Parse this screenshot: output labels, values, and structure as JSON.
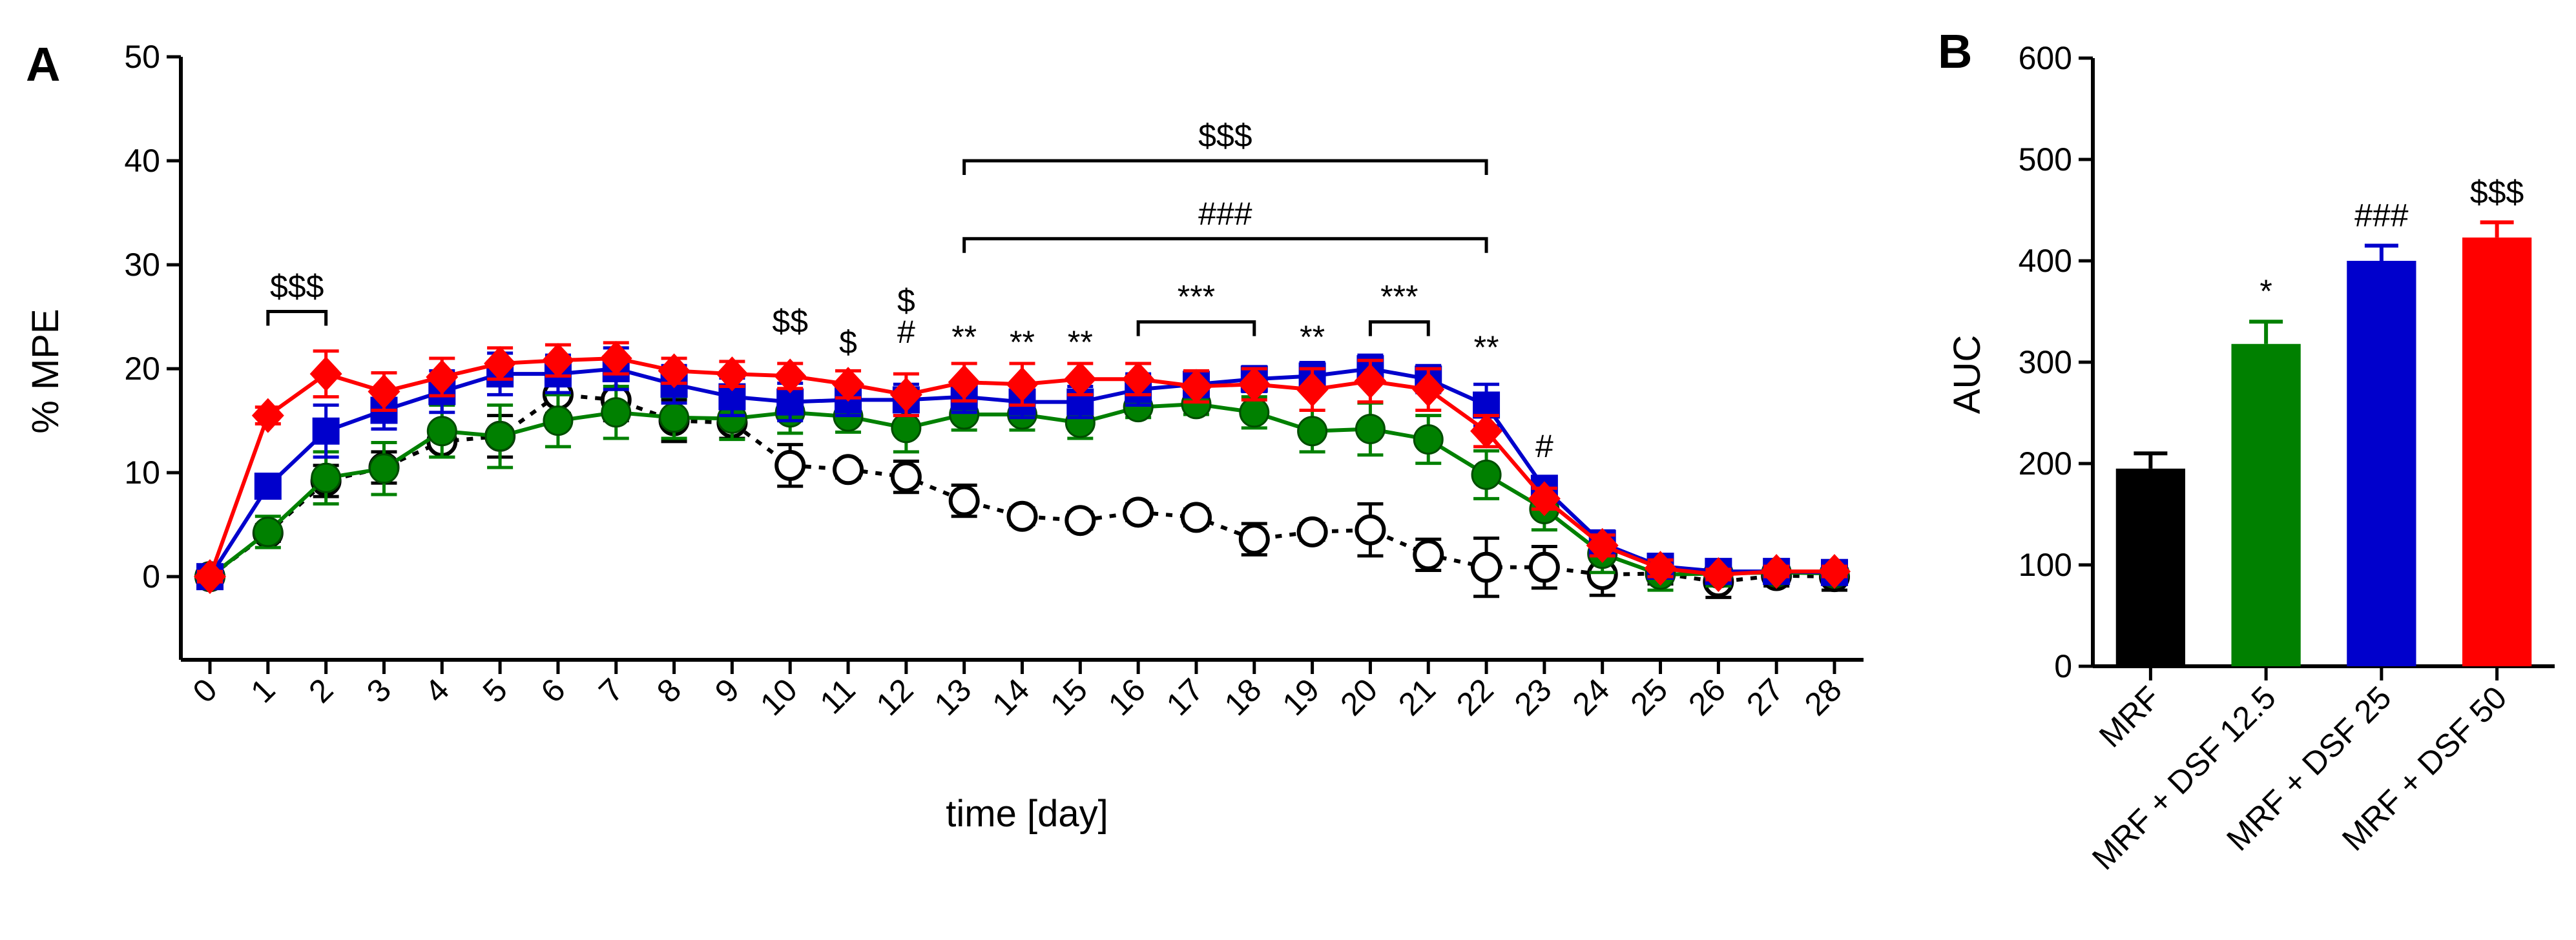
{
  "chart_data": [
    {
      "panel_label": "A",
      "type": "line",
      "xlabel": "time [day]",
      "ylabel": "% MPE",
      "xlim": [
        0,
        28
      ],
      "ylim": [
        -8,
        50
      ],
      "yticks": [
        0,
        10,
        20,
        30,
        40,
        50
      ],
      "x": [
        0,
        1,
        2,
        3,
        4,
        5,
        6,
        7,
        8,
        9,
        10,
        11,
        12,
        13,
        14,
        15,
        16,
        17,
        18,
        19,
        20,
        21,
        22,
        23,
        24,
        25,
        26,
        27,
        28
      ],
      "series": [
        {
          "name": "MRF",
          "color": "#000000",
          "marker": "open-circle",
          "dashed": true,
          "values": [
            0,
            4.2,
            9.2,
            10.5,
            13.0,
            13.5,
            17.5,
            17.0,
            15.0,
            14.8,
            10.7,
            10.3,
            9.6,
            7.3,
            5.8,
            5.4,
            6.2,
            5.7,
            3.6,
            4.3,
            4.5,
            2.1,
            0.9,
            0.9,
            0.2,
            0.3,
            -0.5,
            0.1,
            0.0
          ],
          "errors": [
            0.8,
            0.8,
            1.5,
            1.5,
            1.5,
            2.0,
            1.8,
            2.0,
            2.0,
            1.5,
            2.0,
            0.8,
            1.5,
            1.5,
            0.8,
            0.8,
            0.8,
            0.8,
            1.5,
            0.8,
            2.5,
            1.5,
            2.8,
            2.0,
            2.0,
            1.0,
            1.5,
            1.0,
            1.3
          ]
        },
        {
          "name": "MRF + DSF 12.5",
          "color": "#008000",
          "marker": "circle",
          "dashed": false,
          "values": [
            0,
            4.3,
            9.5,
            10.4,
            14.0,
            13.5,
            15.0,
            15.8,
            15.3,
            15.2,
            15.8,
            15.4,
            14.3,
            15.6,
            15.6,
            14.8,
            16.3,
            16.6,
            15.8,
            14.0,
            14.2,
            13.2,
            9.8,
            6.5,
            2.2,
            0.2,
            0.3,
            0.4,
            0.3
          ],
          "errors": [
            0.8,
            1.5,
            2.5,
            2.5,
            2.5,
            3.0,
            2.5,
            2.5,
            2.0,
            2.0,
            2.0,
            1.5,
            2.3,
            1.5,
            1.5,
            1.5,
            1.0,
            1.0,
            1.5,
            2.0,
            2.5,
            2.3,
            2.3,
            2.0,
            1.8,
            1.5,
            1.2,
            1.0,
            1.0
          ]
        },
        {
          "name": "MRF + DSF 25",
          "color": "#0000CC",
          "marker": "square",
          "dashed": false,
          "values": [
            0,
            8.7,
            14.0,
            16.0,
            17.8,
            19.5,
            19.5,
            20.0,
            18.5,
            17.3,
            16.8,
            17.0,
            17.0,
            17.3,
            16.8,
            16.8,
            18.0,
            18.5,
            19.0,
            19.3,
            20.0,
            19.0,
            16.5,
            8.5,
            3.2,
            1.0,
            0.5,
            0.5,
            0.4
          ],
          "errors": [
            0.6,
            1.0,
            2.5,
            1.8,
            2.0,
            2.0,
            1.8,
            2.0,
            1.8,
            1.8,
            1.8,
            1.5,
            1.5,
            1.5,
            1.5,
            1.5,
            1.5,
            1.2,
            1.2,
            1.3,
            1.3,
            1.3,
            2.0,
            1.0,
            1.2,
            1.0,
            1.0,
            0.8,
            0.8
          ]
        },
        {
          "name": "MRF + DSF 50",
          "color": "#FF0000",
          "marker": "diamond",
          "dashed": false,
          "values": [
            0,
            15.5,
            19.5,
            17.8,
            19.2,
            20.5,
            20.8,
            21.0,
            19.8,
            19.5,
            19.3,
            18.5,
            17.5,
            18.7,
            18.5,
            19.0,
            19.0,
            18.3,
            18.5,
            18.0,
            18.8,
            18.0,
            14.0,
            7.5,
            3.0,
            0.8,
            0.2,
            0.5,
            0.5
          ],
          "errors": [
            0.5,
            0.8,
            2.2,
            1.8,
            1.8,
            1.5,
            1.5,
            1.5,
            1.2,
            1.2,
            1.2,
            1.3,
            2.0,
            1.8,
            2.0,
            1.5,
            1.5,
            1.5,
            1.5,
            2.0,
            2.0,
            2.0,
            1.5,
            1.0,
            1.0,
            0.8,
            0.5,
            0.5,
            0.5
          ]
        }
      ],
      "annotations": [
        {
          "text": "$$",
          "x": 10,
          "y": 23.5
        },
        {
          "text": "$",
          "x": 11,
          "y": 21.5
        },
        {
          "text": "$",
          "x": 12,
          "y": 25.5
        },
        {
          "text": "#",
          "x": 12,
          "y": 22.5
        },
        {
          "text": "**",
          "x": 13,
          "y": 22
        },
        {
          "text": "**",
          "x": 14,
          "y": 21.5
        },
        {
          "text": "**",
          "x": 15,
          "y": 21.5
        },
        {
          "text": "**",
          "x": 19,
          "y": 22
        },
        {
          "text": "**",
          "x": 22,
          "y": 21
        },
        {
          "text": "#",
          "x": 23,
          "y": 11.5
        }
      ],
      "brackets": [
        {
          "text": "$$$",
          "x1": 1,
          "x2": 2,
          "y": 25.5
        },
        {
          "text": "$$$",
          "x1": 13,
          "x2": 22,
          "y": 40.0
        },
        {
          "text": "###",
          "x1": 13,
          "x2": 22,
          "y": 32.5
        },
        {
          "text": "***",
          "x1": 16,
          "x2": 18,
          "y": 24.5
        },
        {
          "text": "***",
          "x1": 20,
          "x2": 21,
          "y": 24.5
        }
      ]
    },
    {
      "panel_label": "B",
      "type": "bar",
      "ylabel": "AUC",
      "ylim": [
        0,
        600
      ],
      "yticks": [
        0,
        100,
        200,
        300,
        400,
        500,
        600
      ],
      "categories": [
        "MRF",
        "MRF + DSF 12.5",
        "MRF + DSF 25",
        "MRF + DSF 50"
      ],
      "values": [
        195,
        318,
        400,
        423
      ],
      "errors": [
        15,
        22,
        15,
        15
      ],
      "colors": [
        "#000000",
        "#008000",
        "#0000CC",
        "#FF0000"
      ],
      "significance": [
        "",
        "*",
        "###",
        "$$$"
      ]
    }
  ]
}
